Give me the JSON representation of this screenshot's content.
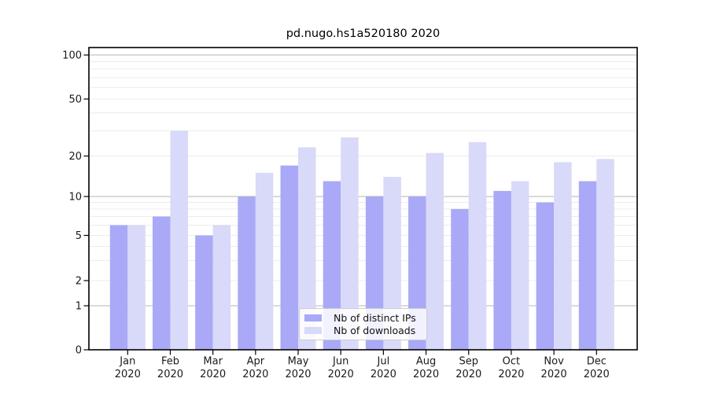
{
  "title": "pd.nugo.hs1a520180 2020",
  "legend": {
    "items": [
      {
        "label": "Nb of distinct IPs",
        "color": "#a9a9f7"
      },
      {
        "label": "Nb of downloads",
        "color": "#d9d9f9"
      }
    ]
  },
  "chart_data": {
    "type": "bar",
    "title": "pd.nugo.hs1a520180 2020",
    "categories": [
      "Jan",
      "Feb",
      "Mar",
      "Apr",
      "May",
      "Jun",
      "Jul",
      "Aug",
      "Sep",
      "Oct",
      "Nov",
      "Dec"
    ],
    "category_year": "2020",
    "series": [
      {
        "name": "Nb of distinct IPs",
        "color": "#a9a9f7",
        "values": [
          6,
          7,
          5,
          10,
          17,
          13,
          10,
          10,
          8,
          11,
          9,
          13
        ]
      },
      {
        "name": "Nb of downloads",
        "color": "#d9d9f9",
        "values": [
          6,
          30,
          6,
          15,
          23,
          27,
          14,
          21,
          25,
          13,
          18,
          19
        ]
      }
    ],
    "xlabel": "",
    "ylabel": "",
    "yaxis": {
      "scale": "log-like",
      "tick_values": [
        0,
        1,
        2,
        5,
        10,
        20,
        50,
        100
      ],
      "major_gridlines": [
        1,
        10,
        100
      ],
      "minor_gridlines": [
        2,
        3,
        4,
        5,
        6,
        7,
        8,
        9,
        20,
        30,
        40,
        50,
        60,
        70,
        80,
        90
      ],
      "ylim": [
        0,
        100
      ]
    },
    "grid": true,
    "legend_position": "bottom-center"
  },
  "colors": {
    "bar_ips": "#a9a9f7",
    "bar_downloads": "#d9d9f9",
    "major_grid": "#b5b5b5",
    "minor_grid": "#ececec",
    "axis_frame": "#000000",
    "tick_text": "#1a1a1a"
  }
}
